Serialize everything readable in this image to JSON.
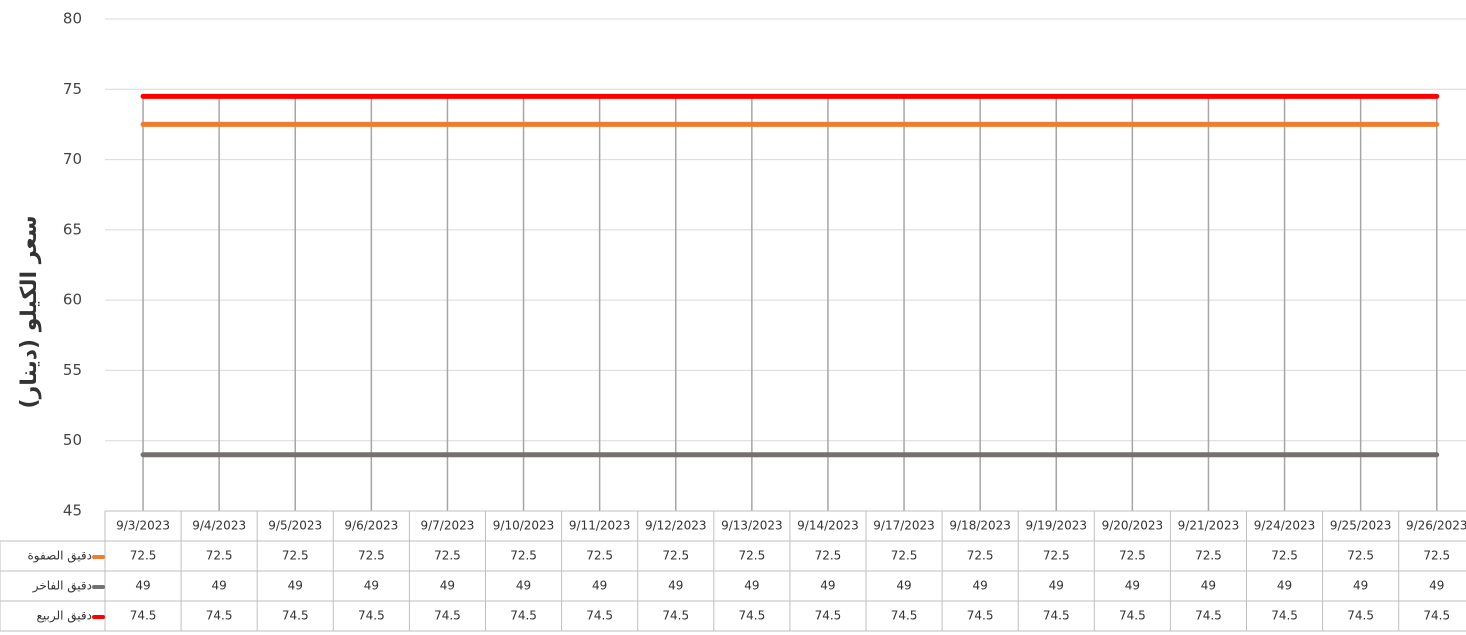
{
  "chart_data": {
    "type": "line",
    "y_label": "سعر الكيلو (دينار)",
    "categories": [
      "9/3/2023",
      "9/4/2023",
      "9/5/2023",
      "9/6/2023",
      "9/7/2023",
      "9/10/2023",
      "9/11/2023",
      "9/12/2023",
      "9/13/2023",
      "9/14/2023",
      "9/17/2023",
      "9/18/2023",
      "9/19/2023",
      "9/20/2023",
      "9/21/2023",
      "9/24/2023",
      "9/25/2023",
      "9/26/2023"
    ],
    "series": [
      {
        "name": "دقيق الصفوة",
        "color": "#ed7d31",
        "values": [
          72.5,
          72.5,
          72.5,
          72.5,
          72.5,
          72.5,
          72.5,
          72.5,
          72.5,
          72.5,
          72.5,
          72.5,
          72.5,
          72.5,
          72.5,
          72.5,
          72.5,
          72.5
        ]
      },
      {
        "name": "دقيق الفاخر",
        "color": "#767171",
        "values": [
          49,
          49,
          49,
          49,
          49,
          49,
          49,
          49,
          49,
          49,
          49,
          49,
          49,
          49,
          49,
          49,
          49,
          49
        ]
      },
      {
        "name": "دقيق الربيع",
        "color": "#ff0000",
        "values": [
          74.5,
          74.5,
          74.5,
          74.5,
          74.5,
          74.5,
          74.5,
          74.5,
          74.5,
          74.5,
          74.5,
          74.5,
          74.5,
          74.5,
          74.5,
          74.5,
          74.5,
          74.5
        ]
      }
    ],
    "ylim": [
      45,
      80
    ],
    "yticks": [
      45,
      50,
      55,
      60,
      65,
      70,
      75,
      80
    ],
    "grid": true
  }
}
